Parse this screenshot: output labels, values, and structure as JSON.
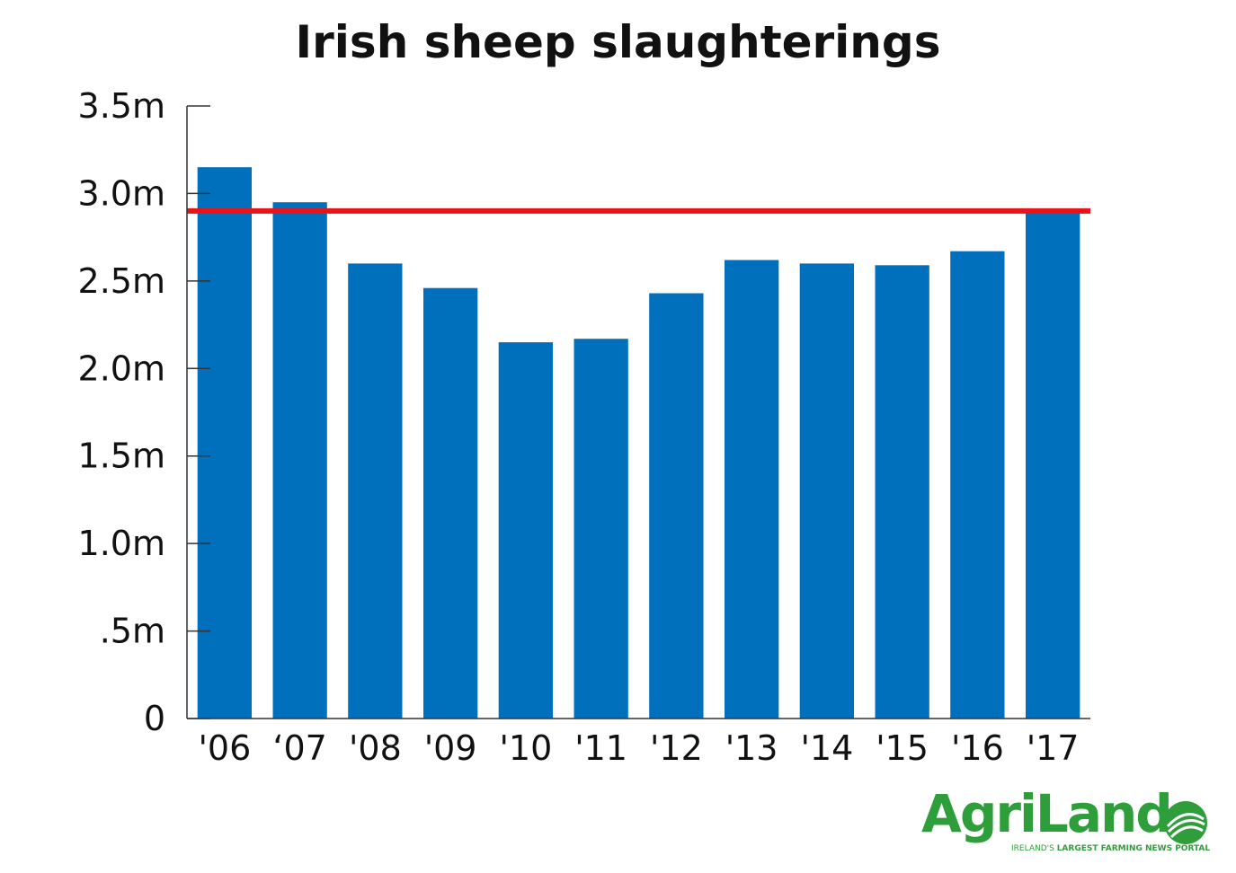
{
  "chart_data": {
    "type": "bar",
    "title": "Irish sheep slaughterings",
    "categories": [
      "'06",
      "‘07",
      "'08",
      "'09",
      "'10",
      "'11",
      "'12",
      "'13",
      "'14",
      "'15",
      "'16",
      "'17"
    ],
    "values": [
      3.15,
      2.95,
      2.6,
      2.46,
      2.15,
      2.17,
      2.43,
      2.62,
      2.6,
      2.59,
      2.67,
      2.91
    ],
    "ylim": [
      0,
      3.5
    ],
    "yticks": [
      0,
      0.5,
      1.0,
      1.5,
      2.0,
      2.5,
      3.0,
      3.5
    ],
    "ytick_labels": [
      "0",
      ".5m",
      "1.0m",
      "1.5m",
      "2.0m",
      "2.5m",
      "3.0m",
      "3.5m"
    ],
    "reference_line": 2.9,
    "bar_color": "#0070bc",
    "reference_color": "#e8141b",
    "grid": false,
    "xlabel": "",
    "ylabel": ""
  },
  "logo": {
    "word_a": "Agri",
    "word_b": "Land",
    "tagline_a": "IRELAND'S ",
    "tagline_b": "LARGEST FARMING NEWS PORTAL",
    "color": "#2e9e3a"
  }
}
